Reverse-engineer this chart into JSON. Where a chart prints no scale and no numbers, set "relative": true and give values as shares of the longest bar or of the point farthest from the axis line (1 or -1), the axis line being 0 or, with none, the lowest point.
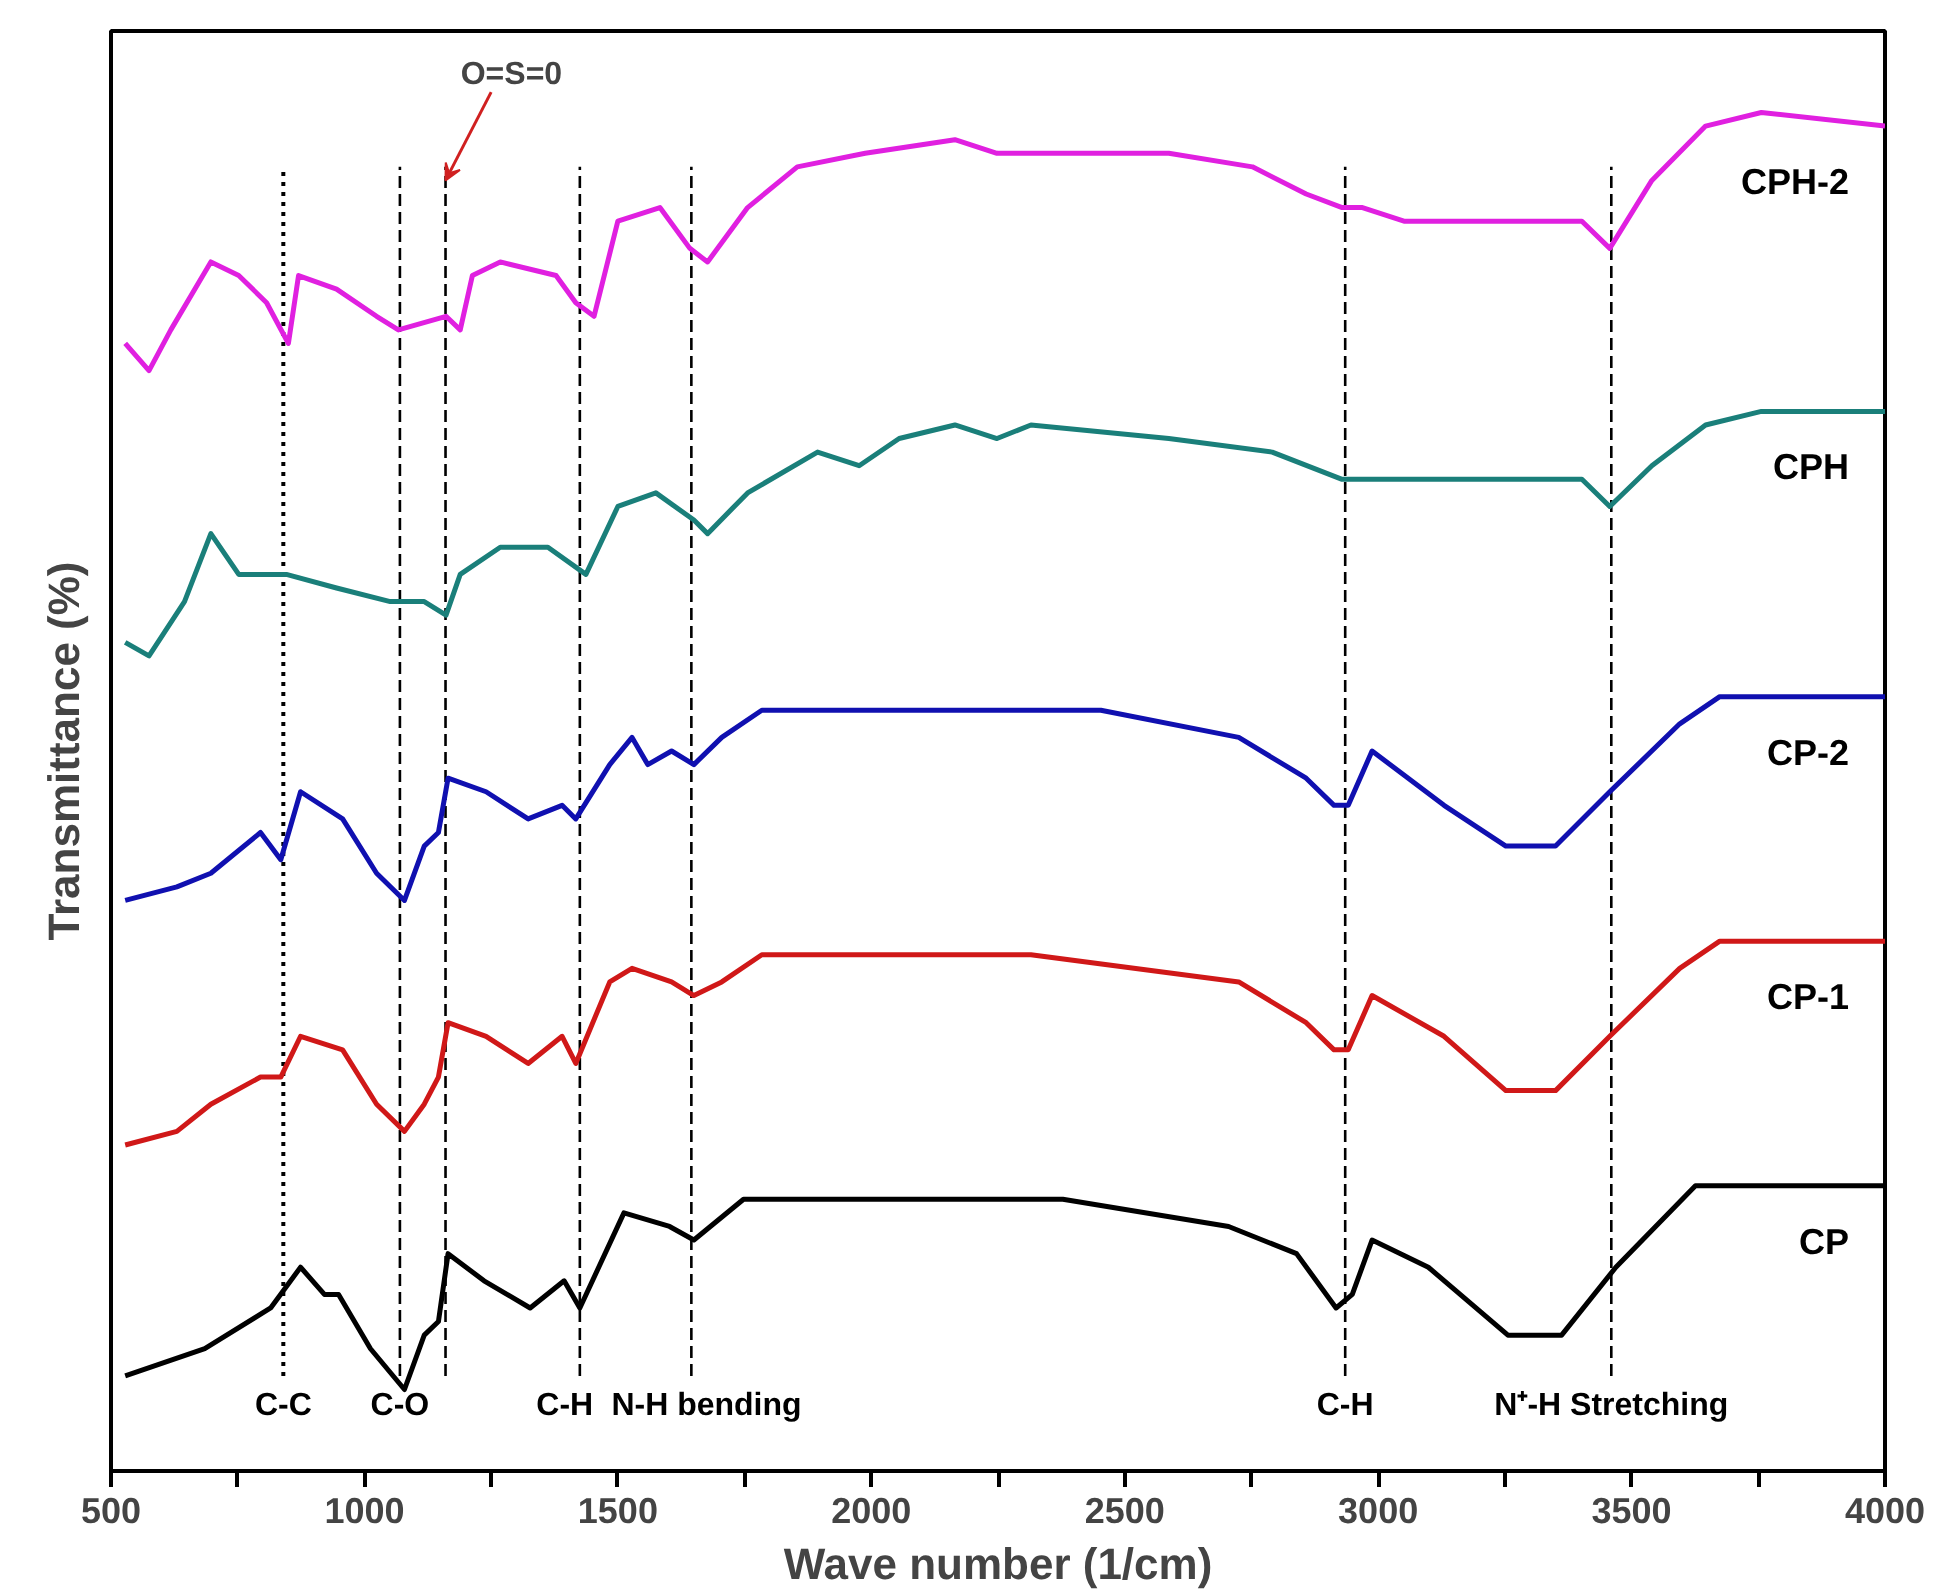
{
  "chart_data": {
    "type": "line",
    "relative": true,
    "xlabel": "Wave number (1/cm)",
    "ylabel": "Transmittance (%)",
    "xlim": [
      500,
      4000
    ],
    "xticks": [
      500,
      {
        "value": 750,
        "label": null
      },
      1000,
      {
        "value": 1250,
        "label": null
      },
      1500,
      {
        "value": 1750,
        "label": null
      },
      2000,
      {
        "value": 2250,
        "label": null
      },
      2500,
      {
        "value": 2750,
        "label": null
      },
      3000,
      {
        "value": 3250,
        "label": null
      },
      3500,
      {
        "value": 3750,
        "label": null
      },
      4000
    ],
    "grid": false,
    "legend": false,
    "marker": "none",
    "line_style": "solid",
    "series": [
      {
        "name": "CP",
        "color": "#000000",
        "x": [
          528,
          685,
          815,
          874,
          921,
          949,
          1012,
          1079,
          1118,
          1146,
          1165,
          1236,
          1327,
          1394,
          1425,
          1512,
          1602,
          1650,
          1748,
          1996,
          2260,
          2378,
          2705,
          2839,
          2917,
          2949,
          2988,
          3099,
          3256,
          3362,
          3469,
          3626,
          4000
        ],
        "values": [
          0.07,
          0.09,
          0.12,
          0.15,
          0.13,
          0.13,
          0.09,
          0.06,
          0.1,
          0.11,
          0.16,
          0.14,
          0.12,
          0.14,
          0.12,
          0.19,
          0.18,
          0.17,
          0.2,
          0.2,
          0.2,
          0.2,
          0.18,
          0.16,
          0.12,
          0.13,
          0.17,
          0.15,
          0.1,
          0.1,
          0.15,
          0.21,
          0.21
        ]
      },
      {
        "name": "CP-1",
        "color": "#d01818",
        "x": [
          528,
          630,
          697,
          795,
          835,
          874,
          957,
          1024,
          1079,
          1118,
          1146,
          1165,
          1240,
          1323,
          1390,
          1417,
          1484,
          1528,
          1606,
          1650,
          1705,
          1784,
          2055,
          2315,
          2725,
          2858,
          2913,
          2941,
          2988,
          3130,
          3252,
          3350,
          3457,
          3595,
          3674,
          4000
        ],
        "values": [
          0.24,
          0.25,
          0.27,
          0.29,
          0.29,
          0.32,
          0.31,
          0.27,
          0.25,
          0.27,
          0.29,
          0.33,
          0.32,
          0.3,
          0.32,
          0.3,
          0.36,
          0.37,
          0.36,
          0.35,
          0.36,
          0.38,
          0.38,
          0.38,
          0.36,
          0.33,
          0.31,
          0.31,
          0.35,
          0.32,
          0.28,
          0.28,
          0.32,
          0.37,
          0.39,
          0.39
        ]
      },
      {
        "name": "CP-2",
        "color": "#1010b0",
        "x": [
          528,
          630,
          697,
          795,
          835,
          874,
          957,
          1024,
          1079,
          1118,
          1146,
          1165,
          1240,
          1323,
          1390,
          1417,
          1484,
          1528,
          1559,
          1606,
          1650,
          1705,
          1784,
          2055,
          2248,
          2453,
          2725,
          2858,
          2913,
          2941,
          2988,
          3130,
          3252,
          3350,
          3457,
          3595,
          3674,
          4000
        ],
        "values": [
          0.42,
          0.43,
          0.44,
          0.47,
          0.45,
          0.5,
          0.48,
          0.44,
          0.42,
          0.46,
          0.47,
          0.51,
          0.5,
          0.48,
          0.49,
          0.48,
          0.52,
          0.54,
          0.52,
          0.53,
          0.52,
          0.54,
          0.56,
          0.56,
          0.56,
          0.56,
          0.54,
          0.51,
          0.49,
          0.49,
          0.53,
          0.49,
          0.46,
          0.46,
          0.5,
          0.55,
          0.57,
          0.57
        ]
      },
      {
        "name": "CPH",
        "color": "#1a7f7a",
        "x": [
          528,
          575,
          645,
          697,
          752,
          846,
          945,
          1051,
          1118,
          1161,
          1189,
          1268,
          1362,
          1437,
          1500,
          1575,
          1650,
          1677,
          1756,
          1894,
          1976,
          2055,
          2165,
          2248,
          2315,
          2587,
          2791,
          2929,
          2969,
          3051,
          3268,
          3402,
          3457,
          3540,
          3646,
          3756,
          4000
        ],
        "values": [
          0.61,
          0.6,
          0.64,
          0.69,
          0.66,
          0.66,
          0.65,
          0.64,
          0.64,
          0.63,
          0.66,
          0.68,
          0.68,
          0.66,
          0.71,
          0.72,
          0.7,
          0.69,
          0.72,
          0.75,
          0.74,
          0.76,
          0.77,
          0.76,
          0.77,
          0.76,
          0.75,
          0.73,
          0.73,
          0.73,
          0.73,
          0.73,
          0.71,
          0.74,
          0.77,
          0.78,
          0.78
        ]
      },
      {
        "name": "CPH-2",
        "color": "#e020e0",
        "x": [
          528,
          575,
          618,
          697,
          752,
          807,
          850,
          870,
          945,
          1024,
          1067,
          1161,
          1189,
          1213,
          1268,
          1378,
          1417,
          1453,
          1500,
          1583,
          1642,
          1677,
          1756,
          1854,
          1988,
          2165,
          2248,
          2315,
          2587,
          2752,
          2858,
          2929,
          2969,
          3051,
          3268,
          3402,
          3457,
          3540,
          3646,
          3756,
          4000
        ],
        "values": [
          0.83,
          0.81,
          0.84,
          0.89,
          0.88,
          0.86,
          0.83,
          0.88,
          0.87,
          0.85,
          0.84,
          0.85,
          0.84,
          0.88,
          0.89,
          0.88,
          0.86,
          0.85,
          0.92,
          0.93,
          0.9,
          0.89,
          0.93,
          0.96,
          0.97,
          0.98,
          0.97,
          0.97,
          0.97,
          0.96,
          0.94,
          0.93,
          0.93,
          0.92,
          0.92,
          0.92,
          0.9,
          0.95,
          0.99,
          1.0,
          0.99
        ]
      }
    ],
    "ref_lines": [
      {
        "axis": "x",
        "value": 840,
        "label": "C-C",
        "line_style": "dotted",
        "color": "#000000"
      },
      {
        "axis": "x",
        "value": 1070,
        "label": "C-O",
        "line_style": "dashed",
        "color": "#000000"
      },
      {
        "axis": "x",
        "value": 1160,
        "label": null,
        "line_style": "dashed",
        "color": "#000000"
      },
      {
        "axis": "x",
        "value": 1425,
        "label": "C-H",
        "line_style": "dashed",
        "color": "#000000"
      },
      {
        "axis": "x",
        "value": 1645,
        "label": "N-H bending",
        "line_style": "dashed",
        "color": "#000000"
      },
      {
        "axis": "x",
        "value": 2935,
        "label": "C-H",
        "line_style": "dashed",
        "color": "#000000"
      },
      {
        "axis": "x",
        "value": 3460,
        "label": "N⁺-H Stretching",
        "line_style": "dashed",
        "color": "#000000"
      }
    ],
    "annotations": [
      {
        "text": "O=S=0",
        "x": 1160,
        "y": 0.95
      }
    ]
  }
}
